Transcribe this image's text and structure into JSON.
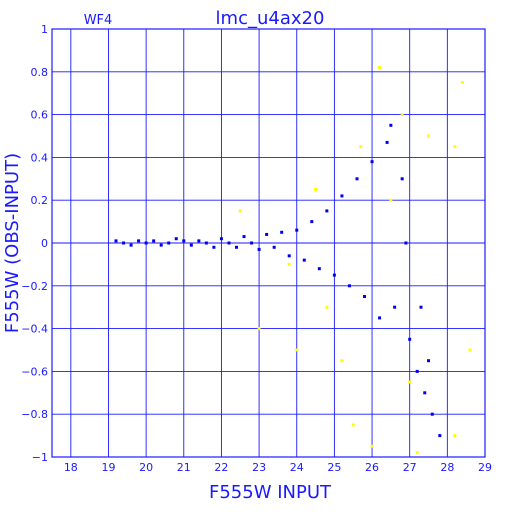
{
  "chart_data": {
    "type": "scatter",
    "title": "lmc_u4ax20",
    "corner_label": "WF4",
    "xlabel": "F555W  INPUT",
    "ylabel": "F555W  (OBS-INPUT)",
    "xlim": [
      17.5,
      29
    ],
    "ylim": [
      -1,
      1
    ],
    "x_ticks": [
      18,
      19,
      20,
      21,
      22,
      23,
      24,
      25,
      26,
      27,
      28,
      29
    ],
    "y_ticks": [
      -1,
      -0.8,
      -0.6,
      -0.4,
      -0.2,
      0,
      0.2,
      0.4,
      0.6,
      0.8,
      1
    ],
    "y_tick_labels": [
      "−1",
      "−0.8",
      "−0.6",
      "−0.4",
      "−0.2",
      "0",
      "0.2",
      "0.4",
      "0.6",
      "0.8",
      "1"
    ],
    "grid": true,
    "colors": {
      "axes": "#1a1aff",
      "primary": "#0000ee",
      "outlier": "#ffff00"
    },
    "series": [
      {
        "color": "#0000ee",
        "points": [
          [
            19.2,
            0.01
          ],
          [
            19.4,
            0.0
          ],
          [
            19.6,
            -0.01
          ],
          [
            19.8,
            0.01
          ],
          [
            20.0,
            0.0
          ],
          [
            20.2,
            0.01
          ],
          [
            20.4,
            -0.01
          ],
          [
            20.6,
            0.0
          ],
          [
            20.8,
            0.02
          ],
          [
            21.0,
            0.01
          ],
          [
            21.2,
            -0.01
          ],
          [
            21.4,
            0.01
          ],
          [
            21.6,
            0.0
          ],
          [
            21.8,
            -0.02
          ],
          [
            22.0,
            0.02
          ],
          [
            22.2,
            0.0
          ],
          [
            22.4,
            -0.02
          ],
          [
            22.6,
            0.03
          ],
          [
            22.8,
            0.0
          ],
          [
            23.0,
            -0.03
          ],
          [
            23.2,
            0.04
          ],
          [
            23.4,
            -0.02
          ],
          [
            23.6,
            0.05
          ],
          [
            23.8,
            -0.06
          ],
          [
            24.0,
            0.06
          ],
          [
            24.2,
            -0.08
          ],
          [
            24.4,
            0.1
          ],
          [
            24.6,
            -0.12
          ],
          [
            24.8,
            0.15
          ],
          [
            25.0,
            -0.15
          ],
          [
            25.2,
            0.22
          ],
          [
            25.4,
            -0.2
          ],
          [
            25.6,
            0.3
          ],
          [
            25.8,
            -0.25
          ],
          [
            26.0,
            0.38
          ],
          [
            26.2,
            -0.35
          ],
          [
            26.4,
            0.47
          ],
          [
            26.6,
            -0.3
          ],
          [
            26.8,
            0.3
          ],
          [
            27.0,
            -0.45
          ],
          [
            27.2,
            -0.6
          ],
          [
            27.4,
            -0.7
          ],
          [
            27.6,
            -0.8
          ],
          [
            27.8,
            -0.9
          ],
          [
            26.5,
            0.55
          ],
          [
            26.9,
            0.0
          ],
          [
            27.3,
            -0.3
          ],
          [
            27.5,
            -0.55
          ]
        ]
      },
      {
        "color": "#ffff00",
        "points": [
          [
            22.5,
            0.15
          ],
          [
            23.0,
            -0.4
          ],
          [
            24.0,
            -0.5
          ],
          [
            24.5,
            0.25
          ],
          [
            25.2,
            -0.55
          ],
          [
            25.7,
            0.45
          ],
          [
            26.2,
            0.82
          ],
          [
            26.8,
            0.6
          ],
          [
            27.0,
            -0.65
          ],
          [
            27.5,
            0.5
          ],
          [
            28.2,
            0.45
          ],
          [
            28.4,
            0.75
          ],
          [
            28.6,
            -0.5
          ],
          [
            28.2,
            -0.9
          ],
          [
            25.5,
            -0.85
          ],
          [
            26.0,
            -0.95
          ],
          [
            27.2,
            -0.98
          ],
          [
            23.8,
            -0.1
          ],
          [
            24.8,
            -0.3
          ],
          [
            26.5,
            0.2
          ]
        ]
      }
    ]
  }
}
